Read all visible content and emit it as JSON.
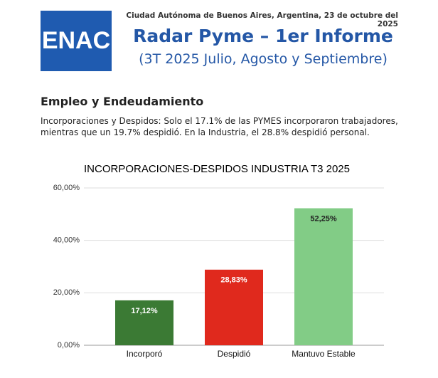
{
  "header": {
    "logo": "ENAC",
    "dateline": "Ciudad Autónoma de Buenos Aires, Argentina, 23 de octubre  del 2025",
    "title": "Radar Pyme – 1er Informe",
    "subtitle": "(3T 2025 Julio, Agosto y Septiembre)"
  },
  "section": {
    "heading": "Empleo y Endeudamiento",
    "text": "Incorporaciones y Despidos: Solo el 17.1% de las PYMES incorporaron trabajadores, mientras que un 19.7% despidió. En la Industria, el 28.8% despidió personal."
  },
  "chart_data": {
    "type": "bar",
    "title": "INCORPORACIONES-DESPIDOS INDUSTRIA T3 2025",
    "categories": [
      "Incorporó",
      "Despidió",
      "Mantuvo Estable"
    ],
    "values": [
      17.12,
      28.83,
      52.25
    ],
    "value_labels": [
      "17,12%",
      "28,83%",
      "52,25%"
    ],
    "colors": [
      "#3b7a34",
      "#e0291d",
      "#82cc86"
    ],
    "ylim": [
      0,
      60
    ],
    "yticks": [
      {
        "value": 0,
        "label": "0,00%"
      },
      {
        "value": 20,
        "label": "20,00%"
      },
      {
        "value": 40,
        "label": "40,00%"
      },
      {
        "value": 60,
        "label": "60,00%"
      }
    ],
    "grid": true
  }
}
